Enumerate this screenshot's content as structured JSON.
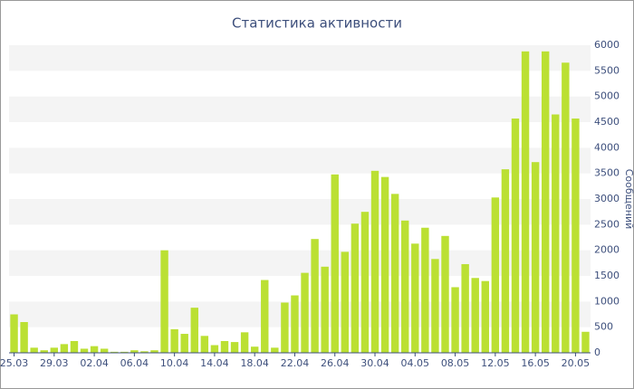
{
  "chart_data": {
    "type": "bar",
    "title": "Статистика активности",
    "y_axis_label": "Сообщений",
    "categories": [
      "25.03",
      null,
      null,
      null,
      "29.03",
      null,
      null,
      null,
      "02.04",
      null,
      null,
      null,
      "06.04",
      null,
      null,
      null,
      "10.04",
      null,
      null,
      null,
      "14.04",
      null,
      null,
      null,
      "18.04",
      null,
      null,
      null,
      "22.04",
      null,
      null,
      null,
      "26.04",
      null,
      null,
      null,
      "30.04",
      null,
      null,
      null,
      "04.05",
      null,
      null,
      null,
      "08.05",
      null,
      null,
      null,
      "12.05",
      null,
      null,
      null,
      "16.05",
      null,
      null,
      null,
      "20.05",
      null
    ],
    "values": [
      750,
      600,
      100,
      50,
      100,
      170,
      230,
      80,
      130,
      80,
      20,
      20,
      50,
      30,
      50,
      2000,
      460,
      370,
      880,
      330,
      150,
      230,
      210,
      400,
      120,
      1420,
      100,
      980,
      1120,
      1560,
      2220,
      1680,
      3480,
      1970,
      2520,
      2750,
      3550,
      3430,
      3100,
      2580,
      2130,
      2440,
      1830,
      2280,
      1280,
      1730,
      1460,
      1400,
      3030,
      3580,
      4570,
      5880,
      3720,
      5880,
      4650,
      5660,
      4570,
      410
    ],
    "color": "#bbe033",
    "ylim": [
      0,
      6000
    ],
    "yticks": [
      0,
      500,
      1000,
      1500,
      2000,
      2500,
      3000,
      3500,
      4000,
      4500,
      5000,
      5500,
      6000
    ],
    "grid": "bands",
    "y_axis_side": "right"
  }
}
